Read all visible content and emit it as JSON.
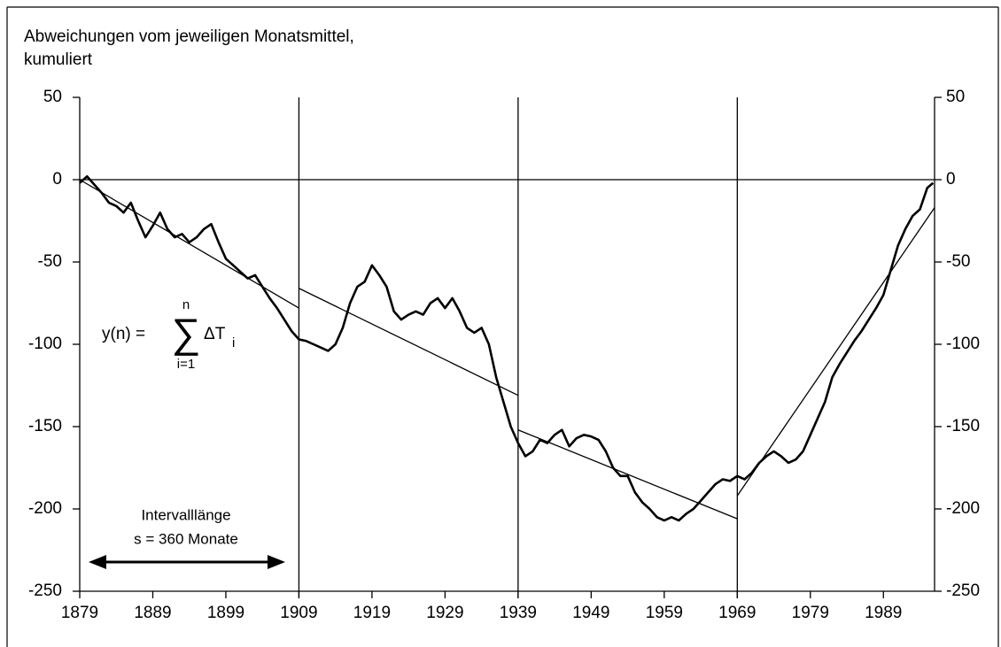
{
  "chart_data": {
    "type": "line",
    "title": [
      "Abweichungen vom jeweiligen Monatsmittel,",
      "kumuliert"
    ],
    "x": [
      1879,
      1880,
      1881,
      1882,
      1883,
      1884,
      1885,
      1886,
      1887,
      1888,
      1889,
      1890,
      1891,
      1892,
      1893,
      1894,
      1895,
      1896,
      1897,
      1898,
      1899,
      1900,
      1901,
      1902,
      1903,
      1904,
      1905,
      1906,
      1907,
      1908,
      1909,
      1910,
      1911,
      1912,
      1913,
      1914,
      1915,
      1916,
      1917,
      1918,
      1919,
      1920,
      1921,
      1922,
      1923,
      1924,
      1925,
      1926,
      1927,
      1928,
      1929,
      1930,
      1931,
      1932,
      1933,
      1934,
      1935,
      1936,
      1937,
      1938,
      1939,
      1940,
      1941,
      1942,
      1943,
      1944,
      1945,
      1946,
      1947,
      1948,
      1949,
      1950,
      1951,
      1952,
      1953,
      1954,
      1955,
      1956,
      1957,
      1958,
      1959,
      1960,
      1961,
      1962,
      1963,
      1964,
      1965,
      1966,
      1967,
      1968,
      1969,
      1970,
      1971,
      1972,
      1973,
      1974,
      1975,
      1976,
      1977,
      1978,
      1979,
      1980,
      1981,
      1982,
      1983,
      1984,
      1985,
      1986,
      1987,
      1988,
      1989,
      1990,
      1991,
      1992,
      1993,
      1994,
      1995,
      1995.8
    ],
    "values": [
      -2,
      2,
      -3,
      -8,
      -14,
      -16,
      -20,
      -14,
      -25,
      -35,
      -28,
      -20,
      -30,
      -35,
      -33,
      -38,
      -35,
      -30,
      -27,
      -38,
      -48,
      -52,
      -56,
      -60,
      -58,
      -65,
      -72,
      -78,
      -85,
      -92,
      -97,
      -98,
      -100,
      -102,
      -104,
      -100,
      -90,
      -75,
      -65,
      -62,
      -52,
      -58,
      -65,
      -80,
      -85,
      -82,
      -80,
      -82,
      -75,
      -72,
      -78,
      -72,
      -80,
      -90,
      -93,
      -90,
      -100,
      -120,
      -135,
      -150,
      -160,
      -168,
      -165,
      -158,
      -160,
      -155,
      -152,
      -162,
      -157,
      -155,
      -156,
      -158,
      -165,
      -175,
      -180,
      -180,
      -190,
      -196,
      -200,
      -205,
      -207,
      -205,
      -207,
      -203,
      -200,
      -195,
      -190,
      -185,
      -182,
      -183,
      -180,
      -182,
      -178,
      -172,
      -168,
      -165,
      -168,
      -172,
      -170,
      -165,
      -155,
      -145,
      -135,
      -120,
      -112,
      -105,
      -98,
      -92,
      -85,
      -78,
      -70,
      -55,
      -40,
      -30,
      -22,
      -18,
      -5,
      -2
    ],
    "color": "#000000",
    "trend_lines": [
      {
        "x": [
          1879,
          1909
        ],
        "values": [
          0,
          -78
        ]
      },
      {
        "x": [
          1909,
          1939
        ],
        "values": [
          -66,
          -131
        ]
      },
      {
        "x": [
          1939,
          1969
        ],
        "values": [
          -152,
          -206
        ]
      },
      {
        "x": [
          1969,
          1996
        ],
        "values": [
          -192,
          -17
        ]
      }
    ],
    "interval_bounds": [
      1909,
      1939,
      1969
    ],
    "xlim": [
      1879,
      1996
    ],
    "xticks": [
      1879,
      1889,
      1899,
      1909,
      1919,
      1929,
      1939,
      1949,
      1959,
      1969,
      1979,
      1989
    ],
    "ylim": [
      -250,
      50
    ],
    "yticks": [
      -250,
      -200,
      -150,
      -100,
      -50,
      0,
      50
    ],
    "formula": {
      "lhs": "y(n) =",
      "sum": "∑",
      "upper": "n",
      "lower": "i=1",
      "term": "ΔT",
      "sub": "i"
    },
    "interval_note": [
      "Intervalllänge",
      "s = 360 Monate"
    ]
  }
}
